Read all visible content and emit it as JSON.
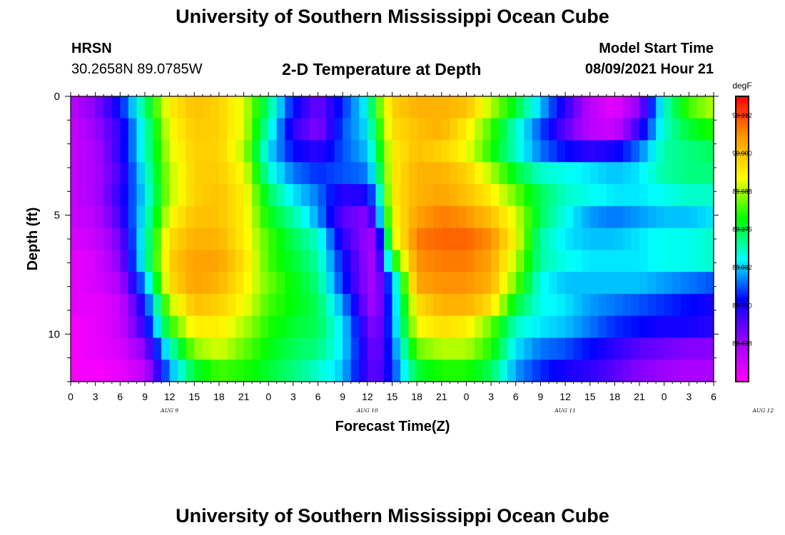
{
  "header": {
    "title": "University of Southern Mississippi Ocean Cube",
    "station": "HRSN",
    "coords": "30.2658N  89.0785W",
    "plot_title": "2-D Temperature at Depth",
    "model_label": "Model Start Time",
    "model_time": "08/09/2021 Hour 21"
  },
  "footer": {
    "title": "University of Southern Mississippi Ocean Cube"
  },
  "chart_data": {
    "type": "heatmap",
    "title": "2-D Temperature at Depth",
    "xlabel": "Forecast Time(Z)",
    "ylabel": "Depth (ft)",
    "x_unit": "hours since 2021-08-09 00Z",
    "xlim": [
      0,
      78
    ],
    "ylim": [
      12,
      0
    ],
    "x_tick_labels": [
      "0",
      "3",
      "6",
      "9",
      "12",
      "15",
      "18",
      "21",
      "0",
      "3",
      "6",
      "9",
      "12",
      "15",
      "18",
      "21",
      "0",
      "3",
      "6",
      "9",
      "12",
      "15",
      "18",
      "21",
      "0",
      "3",
      "6"
    ],
    "y_tick_labels": [
      "0",
      "5",
      "10"
    ],
    "day_labels": [
      "AUG 9",
      "AUG 10",
      "AUG 11",
      "AUG 12"
    ],
    "colorbar": {
      "unit": "degF",
      "tick_labels": [
        "90.312",
        "90.000",
        "89.688",
        "89.375",
        "89.062",
        "88.750",
        "88.438"
      ],
      "range": [
        88.125,
        90.469
      ],
      "colors": [
        "#ff00ff",
        "#9900ff",
        "#0000ff",
        "#00ffff",
        "#00ff00",
        "#ffff00",
        "#ff9900",
        "#ff0000"
      ]
    },
    "depths": [
      0,
      1,
      2,
      3,
      4,
      5,
      6,
      7,
      8,
      9,
      10,
      11,
      12
    ],
    "time_keys": [
      0,
      3,
      6,
      9,
      12,
      15,
      18,
      21,
      24,
      27,
      30,
      33,
      36,
      37,
      39,
      42,
      45,
      48,
      51,
      54,
      57,
      60,
      63,
      66,
      69,
      72,
      75,
      78
    ],
    "values": [
      [
        88.35,
        88.5,
        88.8,
        89.3,
        89.85,
        90.0,
        89.95,
        89.75,
        89.3,
        88.8,
        88.55,
        88.85,
        89.15,
        89.5,
        89.95,
        90.05,
        90.05,
        90.0,
        89.7,
        89.4,
        89.05,
        88.7,
        88.35,
        88.2,
        88.5,
        89.2,
        89.55,
        89.7
      ],
      [
        88.3,
        88.45,
        88.7,
        89.2,
        89.8,
        89.97,
        89.95,
        89.75,
        89.2,
        88.7,
        88.5,
        88.9,
        89.1,
        89.4,
        89.9,
        90.0,
        90.05,
        89.85,
        89.55,
        89.2,
        88.9,
        88.6,
        88.35,
        88.3,
        88.7,
        89.2,
        89.4,
        89.5
      ],
      [
        88.3,
        88.4,
        88.7,
        89.2,
        89.75,
        89.95,
        89.95,
        89.7,
        89.1,
        88.8,
        88.7,
        88.9,
        89.05,
        89.3,
        89.85,
        90.0,
        89.95,
        89.8,
        89.5,
        89.2,
        88.95,
        88.8,
        88.7,
        88.75,
        88.95,
        89.25,
        89.3,
        89.35
      ],
      [
        88.3,
        88.4,
        88.65,
        89.15,
        89.7,
        89.95,
        89.97,
        89.8,
        89.2,
        88.95,
        88.85,
        88.9,
        88.95,
        89.2,
        89.85,
        90.05,
        90.05,
        89.95,
        89.7,
        89.4,
        89.2,
        89.15,
        89.1,
        89.05,
        89.1,
        89.25,
        89.3,
        89.3
      ],
      [
        88.3,
        88.4,
        88.7,
        89.1,
        89.7,
        89.95,
        90.0,
        89.85,
        89.35,
        89.1,
        88.95,
        88.7,
        88.75,
        89.0,
        89.85,
        90.05,
        90.1,
        90.0,
        89.85,
        89.6,
        89.35,
        89.2,
        89.15,
        89.1,
        89.1,
        89.15,
        89.2,
        89.2
      ],
      [
        88.3,
        88.35,
        88.65,
        89.15,
        89.8,
        90.0,
        90.0,
        89.85,
        89.45,
        89.25,
        89.0,
        88.6,
        88.5,
        88.8,
        89.8,
        90.1,
        90.2,
        90.15,
        90.0,
        89.75,
        89.35,
        89.15,
        89.0,
        88.95,
        89.0,
        89.05,
        89.05,
        89.1
      ],
      [
        88.25,
        88.3,
        88.55,
        89.2,
        89.9,
        90.05,
        90.05,
        89.85,
        89.55,
        89.35,
        89.2,
        88.7,
        88.45,
        88.45,
        89.7,
        90.2,
        90.25,
        90.25,
        90.15,
        89.8,
        89.25,
        89.1,
        89.05,
        89.05,
        89.1,
        89.15,
        89.15,
        89.2
      ],
      [
        88.2,
        88.25,
        88.5,
        89.2,
        89.95,
        90.1,
        90.1,
        89.9,
        89.55,
        89.4,
        89.25,
        88.8,
        88.45,
        88.4,
        89.4,
        90.15,
        90.2,
        90.2,
        90.1,
        89.7,
        89.25,
        89.15,
        89.1,
        89.1,
        89.1,
        89.15,
        89.15,
        89.2
      ],
      [
        88.2,
        88.25,
        88.4,
        89.0,
        89.9,
        90.1,
        90.05,
        89.85,
        89.6,
        89.45,
        89.3,
        88.85,
        88.45,
        88.4,
        89.0,
        90.1,
        90.15,
        90.15,
        90.05,
        89.6,
        89.15,
        89.05,
        89.05,
        89.05,
        89.05,
        89.0,
        88.95,
        88.9
      ],
      [
        88.2,
        88.2,
        88.3,
        88.8,
        89.7,
        90.0,
        89.95,
        89.8,
        89.55,
        89.45,
        89.35,
        89.0,
        88.5,
        88.4,
        88.95,
        89.9,
        90.05,
        90.05,
        89.9,
        89.4,
        89.15,
        89.1,
        89.0,
        88.95,
        88.9,
        88.85,
        88.8,
        88.75
      ],
      [
        88.15,
        88.2,
        88.3,
        88.7,
        89.5,
        89.85,
        89.85,
        89.7,
        89.5,
        89.4,
        89.35,
        89.1,
        88.6,
        88.45,
        88.95,
        89.8,
        89.9,
        89.85,
        89.6,
        89.2,
        89.1,
        89.05,
        88.95,
        88.85,
        88.8,
        88.75,
        88.75,
        88.7
      ],
      [
        88.15,
        88.2,
        88.25,
        88.5,
        89.2,
        89.65,
        89.75,
        89.6,
        89.45,
        89.35,
        89.3,
        89.1,
        88.65,
        88.5,
        88.9,
        89.6,
        89.7,
        89.7,
        89.5,
        89.1,
        88.95,
        88.9,
        88.8,
        88.7,
        88.6,
        88.55,
        88.5,
        88.5
      ],
      [
        88.15,
        88.15,
        88.2,
        88.35,
        89.0,
        89.4,
        89.55,
        89.5,
        89.4,
        89.3,
        89.2,
        89.05,
        88.65,
        88.55,
        88.85,
        89.4,
        89.5,
        89.5,
        89.35,
        89.0,
        88.85,
        88.75,
        88.7,
        88.6,
        88.5,
        88.45,
        88.4,
        88.4
      ]
    ]
  }
}
